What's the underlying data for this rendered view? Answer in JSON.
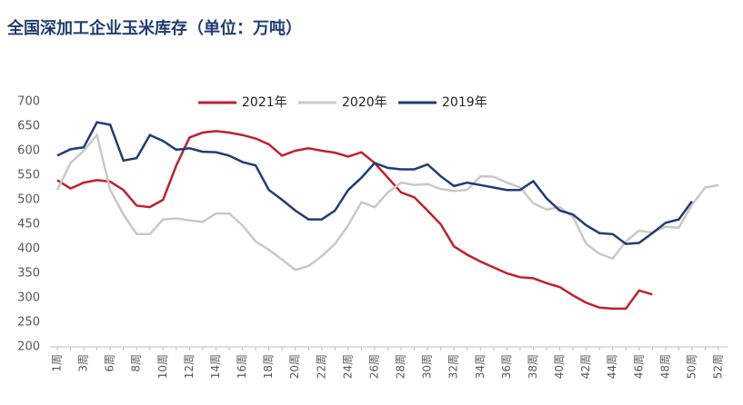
{
  "chart_data": {
    "type": "line",
    "title": "全国深加工企业玉米库存（单位：万吨）",
    "categories": [
      "1周",
      null,
      "3周",
      null,
      "6周",
      null,
      "8周",
      null,
      "10周",
      null,
      "12周",
      null,
      "14周",
      null,
      "16周",
      null,
      "18周",
      null,
      "20周",
      null,
      "22周",
      null,
      "24周",
      null,
      "26周",
      null,
      "28周",
      null,
      "30周",
      null,
      "32周",
      null,
      "34周",
      null,
      "36周",
      null,
      "38周",
      null,
      "40周",
      null,
      "42周",
      null,
      "44周",
      null,
      "46周",
      null,
      "48周",
      null,
      "50周",
      null,
      "52周"
    ],
    "series": [
      {
        "name": "2021年",
        "color": "#c0202c",
        "values": [
          540,
          523,
          535,
          540,
          537,
          520,
          488,
          485,
          500,
          570,
          627,
          637,
          640,
          637,
          632,
          625,
          613,
          590,
          600,
          605,
          600,
          596,
          588,
          597,
          575,
          545,
          515,
          505,
          478,
          450,
          405,
          388,
          374,
          362,
          350,
          342,
          340,
          330,
          322,
          305,
          290,
          280,
          278,
          278,
          315,
          307,
          null,
          null,
          null,
          null,
          null
        ]
      },
      {
        "name": "2020年",
        "color": "#c8c8c8",
        "values": [
          520,
          575,
          600,
          632,
          520,
          470,
          430,
          430,
          460,
          462,
          458,
          455,
          472,
          472,
          448,
          415,
          398,
          378,
          357,
          365,
          385,
          410,
          448,
          495,
          485,
          515,
          535,
          530,
          532,
          522,
          518,
          520,
          548,
          547,
          535,
          525,
          493,
          480,
          485,
          465,
          410,
          390,
          380,
          415,
          437,
          433,
          445,
          443,
          490,
          525,
          530
        ]
      },
      {
        "name": "2019年",
        "color": "#1f3d73",
        "values": [
          590,
          603,
          607,
          658,
          653,
          580,
          585,
          632,
          620,
          602,
          605,
          598,
          597,
          590,
          577,
          570,
          520,
          500,
          478,
          460,
          460,
          478,
          520,
          545,
          575,
          565,
          562,
          562,
          572,
          548,
          528,
          535,
          530,
          525,
          520,
          520,
          538,
          503,
          478,
          470,
          448,
          432,
          430,
          410,
          412,
          432,
          453,
          460,
          497,
          null,
          null
        ]
      }
    ],
    "ylim": [
      200,
      700
    ],
    "yticks": [
      200,
      250,
      300,
      350,
      400,
      450,
      500,
      550,
      600,
      650,
      700
    ]
  }
}
